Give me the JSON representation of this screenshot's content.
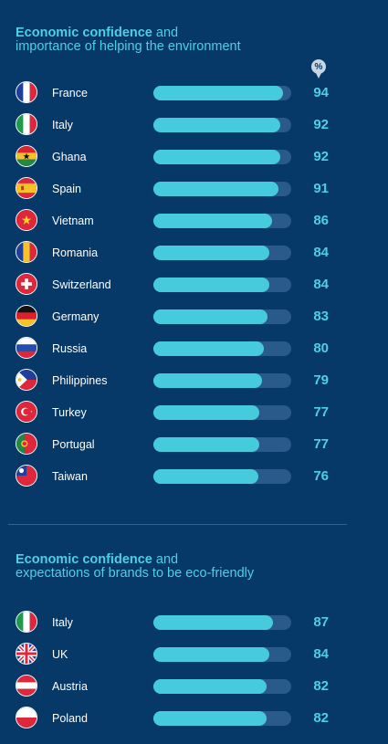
{
  "chart_data": [
    {
      "type": "bar",
      "title_bold": "Economic confidence",
      "title_rest_line1": " and",
      "title_line2": "importance of helping the environment",
      "unit_badge": "%",
      "xlim": [
        0,
        100
      ],
      "categories": [
        "France",
        "Italy",
        "Ghana",
        "Spain",
        "Vietnam",
        "Romania",
        "Switzerland",
        "Germany",
        "Russia",
        "Philippines",
        "Turkey",
        "Portugal",
        "Taiwan"
      ],
      "values": [
        94,
        92,
        92,
        91,
        86,
        84,
        84,
        83,
        80,
        79,
        77,
        77,
        76
      ],
      "flags": [
        "france-flag-icon",
        "italy-flag-icon",
        "ghana-flag-icon",
        "spain-flag-icon",
        "vietnam-flag-icon",
        "romania-flag-icon",
        "switzerland-flag-icon",
        "germany-flag-icon",
        "russia-flag-icon",
        "philippines-flag-icon",
        "turkey-flag-icon",
        "portugal-flag-icon",
        "taiwan-flag-icon"
      ]
    },
    {
      "type": "bar",
      "title_bold": "Economic confidence",
      "title_rest_line1": " and",
      "title_line2": "expectations of brands to be eco-friendly",
      "xlim": [
        0,
        100
      ],
      "categories": [
        "Italy",
        "UK",
        "Austria",
        "Poland"
      ],
      "values": [
        87,
        84,
        82,
        82
      ],
      "flags": [
        "italy-flag-icon",
        "uk-flag-icon",
        "austria-flag-icon",
        "poland-flag-icon"
      ]
    }
  ],
  "colors": {
    "background": "#063868",
    "accent": "#4fd0e0",
    "bar_fill": "#45cbdc",
    "bar_track": "#2a5a8c"
  }
}
